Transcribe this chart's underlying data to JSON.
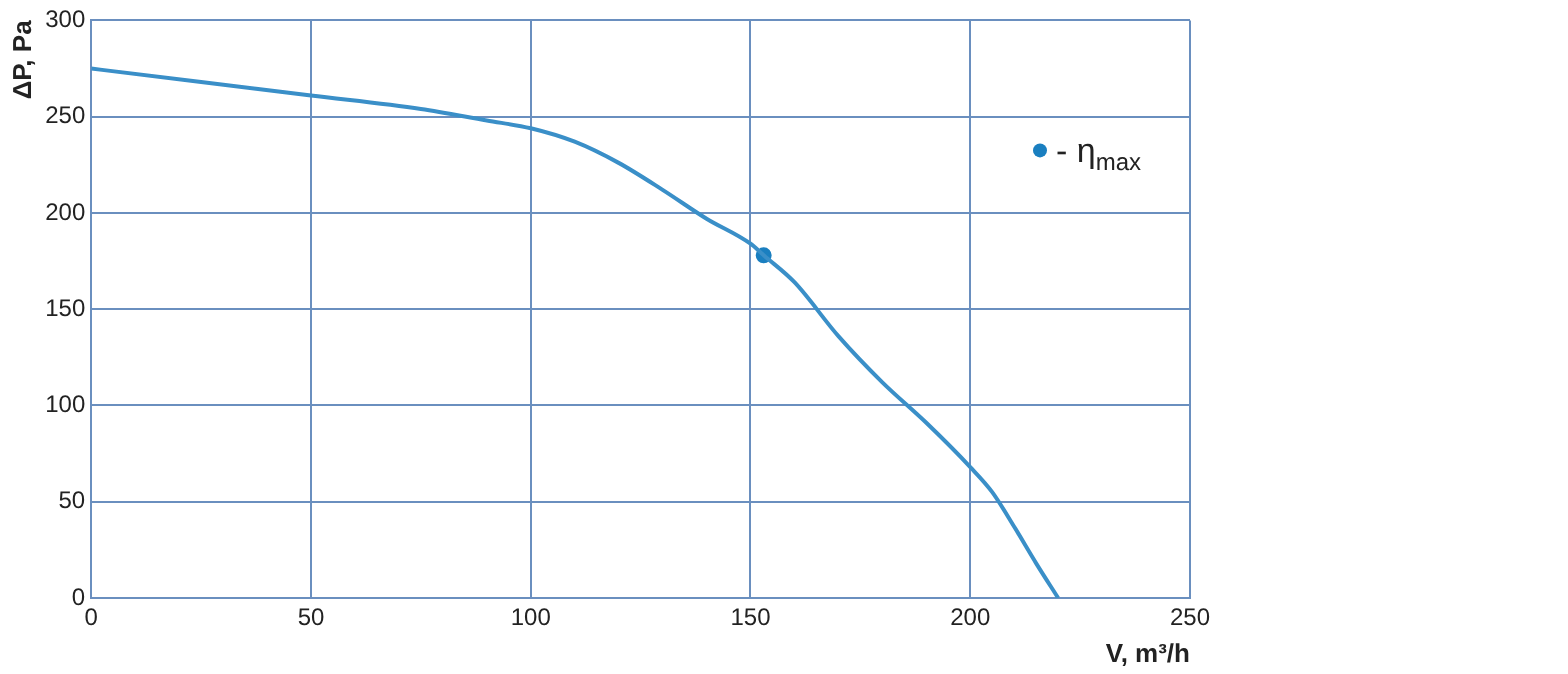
{
  "chart_data": {
    "type": "line",
    "xlabel": "V, m³/h",
    "ylabel": "ΔP, Pa",
    "xlim": [
      0,
      250
    ],
    "xticks": [
      0,
      50,
      100,
      150,
      200,
      250
    ],
    "ylim": [
      0,
      300
    ],
    "yticks": [
      0,
      50,
      100,
      150,
      200,
      250,
      300
    ],
    "grid": true,
    "legend": "top right",
    "series": [
      {
        "color": "#3a8fc8",
        "x": [
          0,
          25,
          50,
          75,
          90,
          100,
          110,
          120,
          130,
          140,
          150,
          153,
          160,
          170,
          180,
          190,
          200,
          205,
          210,
          215,
          220
        ],
        "values": [
          275,
          268,
          261,
          254,
          248,
          244,
          237,
          226,
          212,
          197,
          184,
          178,
          164,
          136,
          112,
          91,
          68,
          55,
          37,
          18,
          0
        ]
      },
      {
        "type": "scatter",
        "name": "- η$_{max}$",
        "color": "#1a7fc0",
        "x": [
          153
        ],
        "values": [
          178
        ]
      }
    ]
  }
}
